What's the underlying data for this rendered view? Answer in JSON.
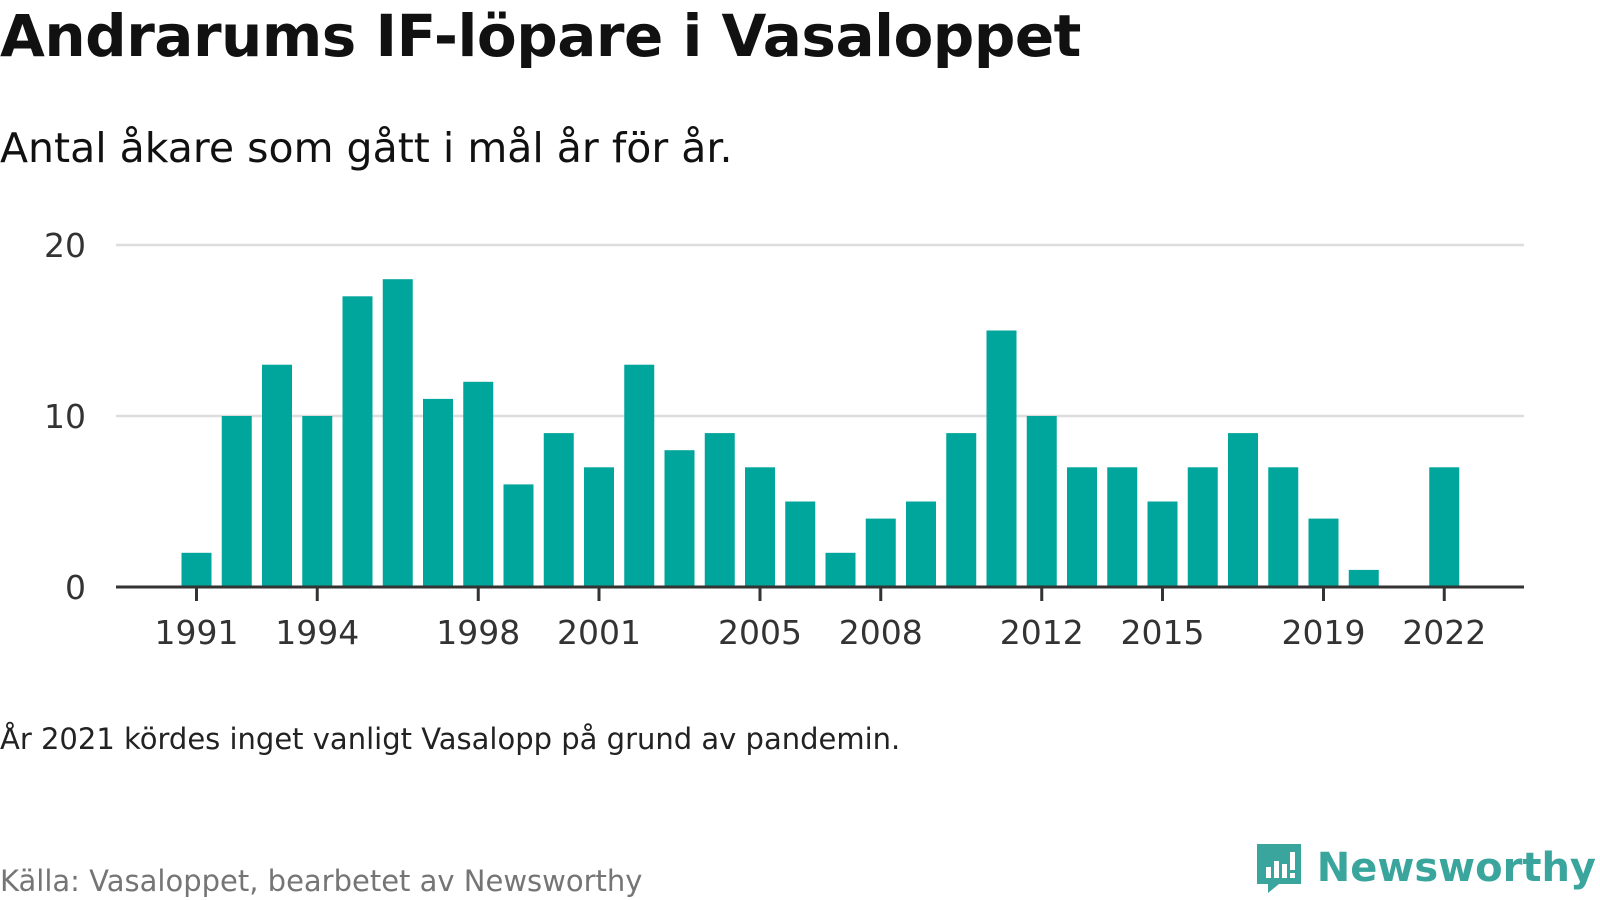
{
  "title": "Andrarums IF-löpare i Vasaloppet",
  "subtitle": "Antal åkare som gått i mål år för år.",
  "note": "År 2021 kördes inget vanligt Vasalopp på grund av pandemin.",
  "source": "Källa: Vasaloppet, bearbetet av Newsworthy",
  "brand": {
    "name": "Newsworthy",
    "icon": "newsworthy-logo-icon"
  },
  "colors": {
    "bar": "#00a59b",
    "grid": "#dddddd",
    "axis": "#333333",
    "brand": "#3aa59c"
  },
  "chart_data": {
    "type": "bar",
    "title": "Andrarums IF-löpare i Vasaloppet",
    "subtitle": "Antal åkare som gått i mål år för år.",
    "xlabel": "",
    "ylabel": "",
    "categories": [
      1991,
      1992,
      1993,
      1994,
      1995,
      1996,
      1997,
      1998,
      1999,
      2000,
      2001,
      2002,
      2003,
      2004,
      2005,
      2006,
      2007,
      2008,
      2009,
      2010,
      2011,
      2012,
      2013,
      2014,
      2015,
      2016,
      2017,
      2018,
      2019,
      2020,
      2021,
      2022
    ],
    "values": [
      2,
      10,
      13,
      10,
      17,
      18,
      11,
      12,
      6,
      9,
      7,
      13,
      8,
      9,
      7,
      5,
      2,
      4,
      5,
      9,
      15,
      10,
      7,
      7,
      5,
      7,
      9,
      7,
      4,
      1,
      null,
      7
    ],
    "ylim": [
      0,
      20
    ],
    "yticks": [
      0,
      10,
      20
    ],
    "xticks": [
      "1991",
      "1994",
      "1998",
      "2001",
      "2005",
      "2008",
      "2012",
      "2015",
      "2019",
      "2022"
    ],
    "grid": true,
    "legend": "none"
  }
}
